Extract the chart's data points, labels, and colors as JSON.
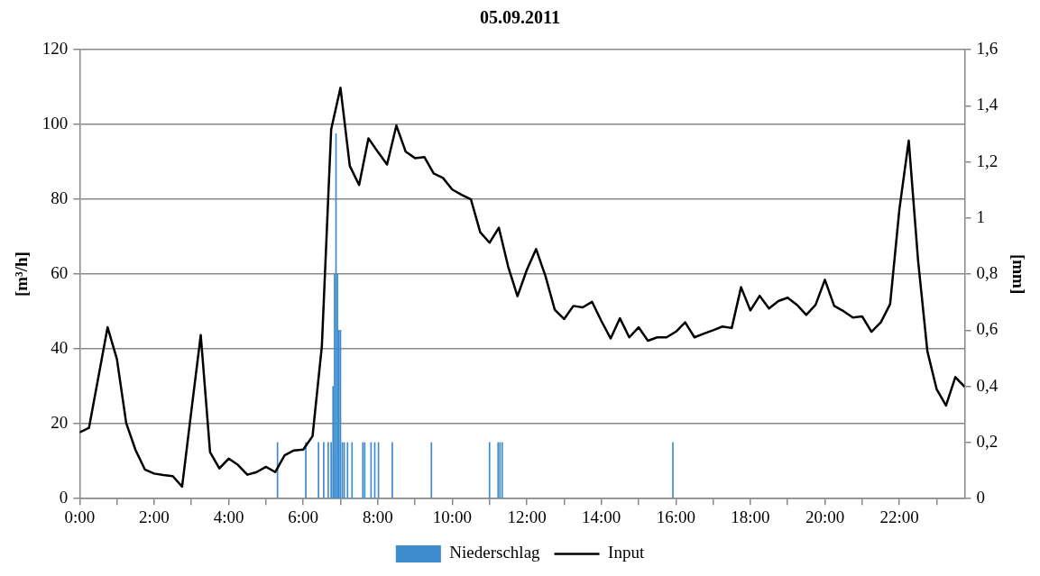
{
  "chart_data": {
    "type": "line",
    "title": "05.09.2011",
    "ylabel": "[m³/h]",
    "y2label": "[mm]",
    "xlim": [
      0,
      23.75
    ],
    "xticks": [
      {
        "value": 0,
        "label": "0:00"
      },
      {
        "value": 1,
        "label": null
      },
      {
        "value": 2,
        "label": "2:00"
      },
      {
        "value": 3,
        "label": null
      },
      {
        "value": 4,
        "label": "4:00"
      },
      {
        "value": 5,
        "label": null
      },
      {
        "value": 6,
        "label": "6:00"
      },
      {
        "value": 7,
        "label": null
      },
      {
        "value": 8,
        "label": "8:00"
      },
      {
        "value": 9,
        "label": null
      },
      {
        "value": 10,
        "label": "10:00"
      },
      {
        "value": 11,
        "label": null
      },
      {
        "value": 12,
        "label": "12:00"
      },
      {
        "value": 13,
        "label": null
      },
      {
        "value": 14,
        "label": "14:00"
      },
      {
        "value": 15,
        "label": null
      },
      {
        "value": 16,
        "label": "16:00"
      },
      {
        "value": 17,
        "label": null
      },
      {
        "value": 18,
        "label": "18:00"
      },
      {
        "value": 19,
        "label": null
      },
      {
        "value": 20,
        "label": "20:00"
      },
      {
        "value": 21,
        "label": null
      },
      {
        "value": 22,
        "label": "22:00"
      },
      {
        "value": 23,
        "label": null
      }
    ],
    "ylim": [
      0,
      120
    ],
    "yticks": [
      0,
      20,
      40,
      60,
      80,
      100,
      120
    ],
    "y2lim": [
      0,
      1.6
    ],
    "y2ticks": [
      0,
      {
        "value": 0.2,
        "label": "0,2"
      },
      {
        "value": 0.4,
        "label": "0,4"
      },
      {
        "value": 0.6,
        "label": "0,6"
      },
      {
        "value": 0.8,
        "label": "0,8"
      },
      1,
      {
        "value": 1.2,
        "label": "1,2"
      },
      {
        "value": 1.4,
        "label": "1,4"
      },
      {
        "value": 1.6,
        "label": "1,6"
      }
    ],
    "grid": "y",
    "legend": "bottom",
    "marker": "none",
    "line_style": "solid",
    "series": [
      {
        "name": "Niederschlag",
        "type": "bar",
        "axis": "y2",
        "color": "#3d8bcd",
        "x": [
          5.31,
          6.07,
          6.41,
          6.55,
          6.67,
          6.75,
          6.8,
          6.84,
          6.88,
          6.92,
          6.96,
          7.0,
          7.05,
          7.1,
          7.19,
          7.31,
          7.6,
          7.65,
          7.82,
          7.92,
          8.02,
          8.39,
          9.44,
          11.0,
          11.23,
          11.28,
          11.34,
          15.92
        ],
        "values": [
          0.2,
          0.2,
          0.2,
          0.2,
          0.2,
          0.2,
          0.4,
          0.8,
          1.3,
          0.8,
          0.6,
          0.6,
          0.2,
          0.2,
          0.2,
          0.2,
          0.2,
          0.2,
          0.2,
          0.2,
          0.2,
          0.2,
          0.2,
          0.2,
          0.2,
          0.2,
          0.2,
          0.2
        ]
      },
      {
        "name": "Input",
        "color": "#000000",
        "x": [
          0,
          0.25,
          0.5,
          0.75,
          1,
          1.25,
          1.5,
          1.75,
          2,
          2.25,
          2.5,
          2.75,
          3,
          3.25,
          3.5,
          3.75,
          4,
          4.25,
          4.5,
          4.75,
          5,
          5.25,
          5.5,
          5.75,
          6,
          6.25,
          6.5,
          6.75,
          7,
          7.25,
          7.5,
          7.75,
          8,
          8.25,
          8.5,
          8.75,
          9,
          9.25,
          9.5,
          9.75,
          10,
          10.25,
          10.5,
          10.75,
          11,
          11.25,
          11.5,
          11.75,
          12,
          12.25,
          12.5,
          12.75,
          13,
          13.25,
          13.5,
          13.75,
          14,
          14.25,
          14.5,
          14.75,
          15,
          15.25,
          15.5,
          15.75,
          16,
          16.25,
          16.5,
          16.75,
          17,
          17.25,
          17.5,
          17.75,
          18,
          18.25,
          18.5,
          18.75,
          19,
          19.25,
          19.5,
          19.75,
          20,
          20.25,
          20.5,
          20.75,
          21,
          21.25,
          21.5,
          21.75,
          22,
          22.25,
          22.5,
          22.75,
          23,
          23.25,
          23.5,
          23.75
        ],
        "values": [
          17.7,
          18.9,
          32.3,
          45.8,
          37.3,
          20.2,
          13.0,
          7.8,
          6.7,
          6.3,
          6.0,
          3.2,
          23.6,
          43.7,
          12.4,
          8.1,
          10.7,
          9.0,
          6.4,
          7.1,
          8.5,
          7.1,
          11.6,
          12.9,
          13.1,
          16.7,
          40.7,
          98.7,
          109.8,
          88.9,
          83.8,
          96.3,
          92.7,
          89.3,
          99.7,
          92.7,
          91.0,
          91.3,
          86.9,
          85.7,
          82.6,
          81.2,
          80.0,
          71.2,
          68.4,
          72.4,
          62.0,
          54.1,
          61.1,
          66.7,
          59.5,
          50.5,
          48.0,
          51.5,
          51.1,
          52.6,
          47.5,
          42.8,
          48.2,
          43.1,
          45.8,
          42.2,
          43.1,
          43.1,
          44.6,
          47.1,
          43.1,
          44.1,
          45.0,
          46.0,
          45.6,
          56.5,
          50.3,
          54.2,
          50.8,
          52.8,
          53.7,
          51.8,
          49.1,
          51.8,
          58.5,
          51.5,
          50.1,
          48.4,
          48.7,
          44.6,
          47.1,
          52.0,
          77.4,
          95.7,
          63.7,
          39.4,
          29.2,
          24.9,
          32.5,
          29.9
        ]
      }
    ]
  }
}
